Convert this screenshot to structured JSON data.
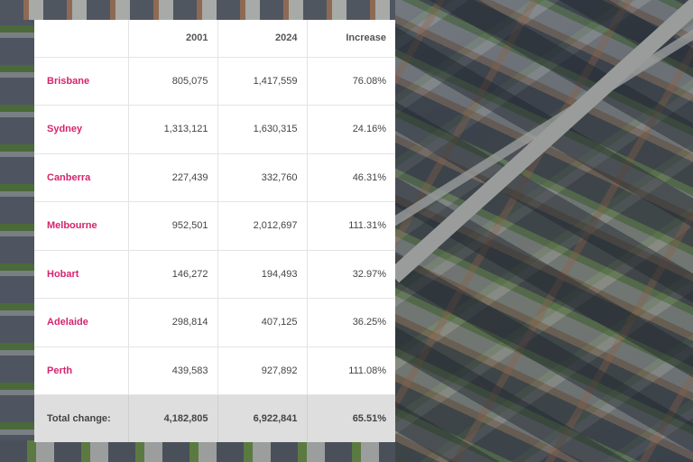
{
  "table": {
    "headers": [
      "",
      "2001",
      "2024",
      "Increase"
    ],
    "rows": [
      {
        "city": "Brisbane",
        "y2001": "805,075",
        "y2024": "1,417,559",
        "increase": "76.08%"
      },
      {
        "city": "Sydney",
        "y2001": "1,313,121",
        "y2024": "1,630,315",
        "increase": "24.16%"
      },
      {
        "city": "Canberra",
        "y2001": "227,439",
        "y2024": "332,760",
        "increase": "46.31%"
      },
      {
        "city": "Melbourne",
        "y2001": "952,501",
        "y2024": "2,012,697",
        "increase": "111.31%"
      },
      {
        "city": "Hobart",
        "y2001": "146,272",
        "y2024": "194,493",
        "increase": "32.97%"
      },
      {
        "city": "Adelaide",
        "y2001": "298,814",
        "y2024": "407,125",
        "increase": "36.25%"
      },
      {
        "city": "Perth",
        "y2001": "439,583",
        "y2024": "927,892",
        "increase": "111.08%"
      }
    ],
    "total": {
      "label": "Total change:",
      "y2001": "4,182,805",
      "y2024": "6,922,841",
      "increase": "65.51%"
    }
  },
  "colors": {
    "city_accent": "#d6246e",
    "total_row_bg": "#dedede"
  }
}
